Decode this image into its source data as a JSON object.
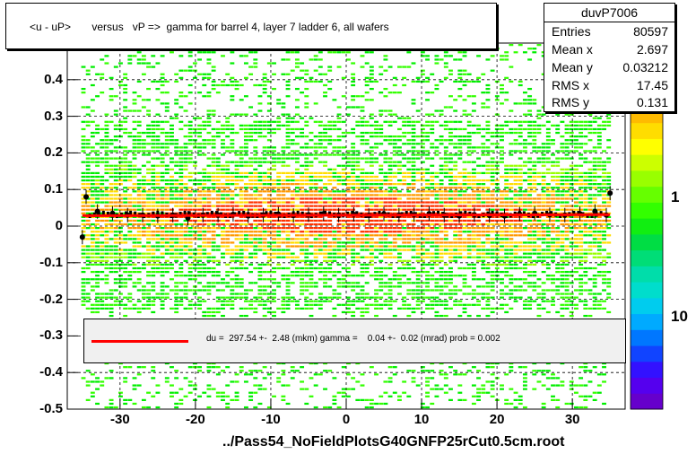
{
  "title": "<u - uP>       versus   vP =>  gamma for barrel 4, layer 7 ladder 6, all wafers",
  "footer": "../Pass54_NoFieldPlotsG40GNFP25rCut0.5cm.root",
  "stats": {
    "name": "duvP7006",
    "rows": [
      {
        "key": "Entries",
        "value": "80597"
      },
      {
        "key": "Mean x",
        "value": "2.697"
      },
      {
        "key": "Mean y",
        "value": "0.03212"
      },
      {
        "key": "RMS x",
        "value": "17.45"
      },
      {
        "key": "RMS y",
        "value": "0.131"
      }
    ]
  },
  "fit_text": "du =  297.54 +-  2.48 (mkm) gamma =    0.04 +-  0.02 (mrad) prob = 0.002",
  "colors": {
    "fit_line": "#ff0000",
    "profile_points": "#000000",
    "low_density": "#33ff00",
    "high_density": "#ff3300"
  },
  "chart_data": {
    "type": "heatmap",
    "xlim": [
      -37,
      37
    ],
    "ylim": [
      -0.5,
      0.5
    ],
    "x_ticks": [
      "-30",
      "-20",
      "-10",
      "0",
      "10",
      "20",
      "30"
    ],
    "y_ticks": [
      "0.4",
      "0.3",
      "0.2",
      "0.1",
      "0",
      "-0.1",
      "-0.2",
      "-0.3",
      "-0.4",
      "-0.5"
    ],
    "z_ticks": [
      "1",
      "10"
    ],
    "grid": true,
    "fit": {
      "intercept": 0.0298,
      "slope": 4e-05
    },
    "profile_x": [
      -35,
      -34.5,
      -33,
      -31,
      -29,
      -27,
      -25,
      -23,
      -21,
      -19,
      -17,
      -15,
      -13,
      -11,
      -9,
      -7,
      -5,
      -3,
      -1,
      1,
      3,
      5,
      7,
      9,
      11,
      13,
      15,
      17,
      19,
      21,
      23,
      25,
      27,
      29,
      31,
      33,
      34.5,
      35
    ],
    "profile_y": [
      -0.03,
      0.08,
      0.04,
      0.035,
      0.03,
      0.03,
      0.028,
      0.03,
      0.022,
      0.03,
      0.03,
      0.032,
      0.028,
      0.03,
      0.033,
      0.029,
      0.031,
      0.034,
      0.03,
      0.032,
      0.029,
      0.033,
      0.03,
      0.031,
      0.034,
      0.03,
      0.028,
      0.031,
      0.029,
      0.028,
      0.033,
      0.035,
      0.031,
      0.03,
      0.034,
      0.04,
      0.03,
      0.09
    ]
  }
}
